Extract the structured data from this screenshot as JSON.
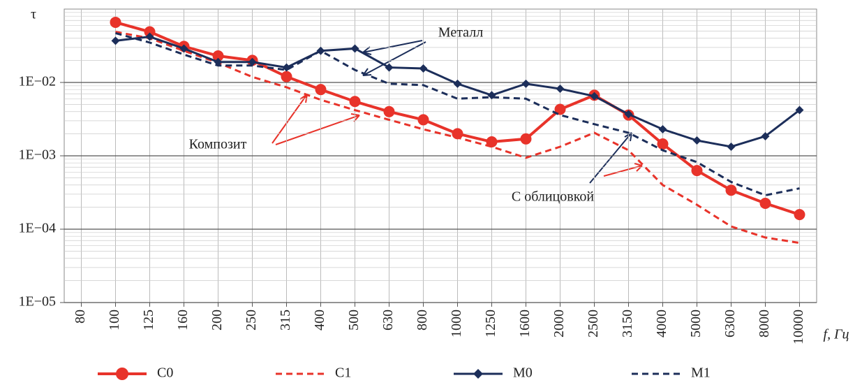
{
  "chart_data": {
    "type": "line",
    "y_label": "τ",
    "x_label": "f, Гц",
    "categories": [
      "80",
      "100",
      "125",
      "160",
      "200",
      "250",
      "315",
      "400",
      "500",
      "630",
      "800",
      "1000",
      "1250",
      "1600",
      "2000",
      "2500",
      "3150",
      "4000",
      "5000",
      "6300",
      "8000",
      "10000"
    ],
    "ylog": true,
    "ylim": [
      1e-05,
      0.1
    ],
    "yticks": [
      {
        "value": 1e-05,
        "label": "1E−05"
      },
      {
        "value": 0.0001,
        "label": "1E−04"
      },
      {
        "value": 0.001,
        "label": "1E−03"
      },
      {
        "value": 0.01,
        "label": "1E−02"
      }
    ],
    "grid": true,
    "legend": "bottom",
    "series": [
      {
        "name": "С0",
        "color": "#e8332a",
        "dash": false,
        "marker": "circle",
        "values": [
          null,
          0.066,
          0.049,
          0.031,
          0.023,
          0.02,
          0.012,
          0.008,
          0.0055,
          0.004,
          0.0031,
          0.002,
          0.00155,
          0.0017,
          0.0043,
          0.0067,
          0.0036,
          0.00145,
          0.00063,
          0.00034,
          0.000225,
          0.000158
        ]
      },
      {
        "name": "С1",
        "color": "#e8332a",
        "dash": true,
        "marker": "none",
        "values": [
          null,
          0.049,
          0.04,
          0.027,
          0.0185,
          0.0119,
          0.0086,
          0.0058,
          0.0042,
          0.0031,
          0.0023,
          0.00177,
          0.00133,
          0.00094,
          0.00133,
          0.00206,
          0.00119,
          0.0004,
          0.000215,
          0.000109,
          7.7e-05,
          6.5e-05
        ]
      },
      {
        "name": "М0",
        "color": "#1c2e5a",
        "dash": false,
        "marker": "diamond",
        "values": [
          null,
          0.037,
          0.042,
          0.029,
          0.019,
          0.019,
          0.016,
          0.027,
          0.029,
          0.016,
          0.0155,
          0.0096,
          0.0067,
          0.0096,
          0.0082,
          0.0065,
          0.0037,
          0.0023,
          0.00162,
          0.00133,
          0.00185,
          0.0042
        ]
      },
      {
        "name": "М1",
        "color": "#1c2e5a",
        "dash": true,
        "marker": "none",
        "values": [
          null,
          0.047,
          0.035,
          0.024,
          0.017,
          0.017,
          0.0148,
          0.027,
          0.0148,
          0.0096,
          0.0092,
          0.006,
          0.0063,
          0.006,
          0.0036,
          0.0027,
          0.00206,
          0.00119,
          0.00082,
          0.00044,
          0.00029,
          0.00036
        ]
      }
    ],
    "annotations": [
      {
        "text": "Металл",
        "color": "#2b2f8f"
      },
      {
        "text": "Композит",
        "color": "#e8332a"
      },
      {
        "text": "С облицовкой",
        "color": "#2b2f8f"
      }
    ]
  }
}
